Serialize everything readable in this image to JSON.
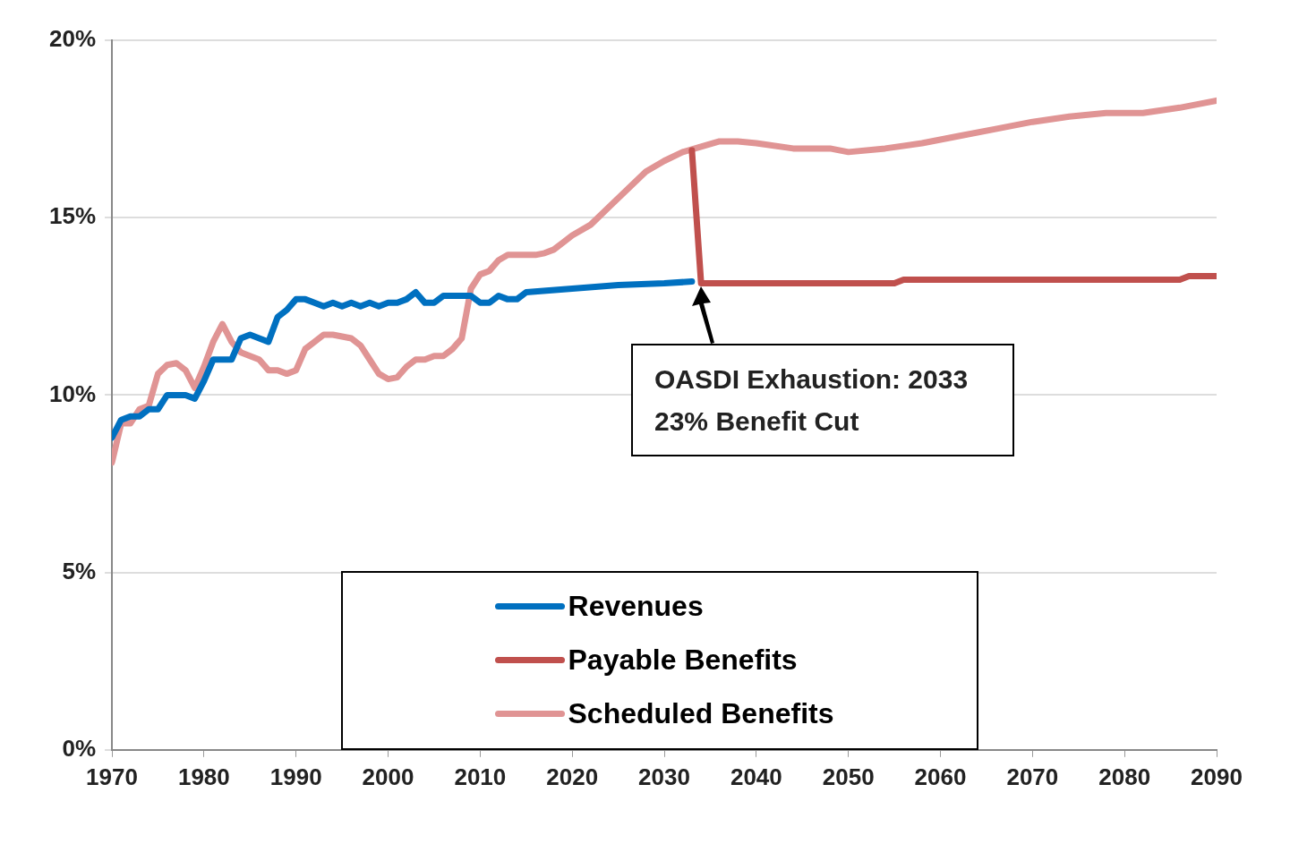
{
  "chart_data": {
    "type": "line",
    "xlim": [
      1970,
      2090
    ],
    "xticks": [
      1970,
      1980,
      1990,
      2000,
      2010,
      2020,
      2030,
      2040,
      2050,
      2060,
      2070,
      2080,
      2090
    ],
    "ylim": [
      0,
      20
    ],
    "yticks": [
      {
        "value": 0,
        "label": "0%"
      },
      {
        "value": 5,
        "label": "5%"
      },
      {
        "value": 10,
        "label": "10%"
      },
      {
        "value": 15,
        "label": "15%"
      },
      {
        "value": 20,
        "label": "20%"
      }
    ],
    "grid": "y",
    "legend": "bottom",
    "marker": "none",
    "line_style": "solid",
    "annotations": [
      "OASDI Exhaustion: 2033\n23% Benefit Cut"
    ],
    "series": [
      {
        "name": "Revenues",
        "color": "#0070c0",
        "x": [
          1970,
          1971,
          1972,
          1973,
          1974,
          1975,
          1976,
          1977,
          1978,
          1979,
          1980,
          1981,
          1982,
          1983,
          1984,
          1985,
          1986,
          1987,
          1988,
          1989,
          1990,
          1991,
          1992,
          1993,
          1994,
          1995,
          1996,
          1997,
          1998,
          1999,
          2000,
          2001,
          2002,
          2003,
          2004,
          2005,
          2006,
          2007,
          2008,
          2009,
          2010,
          2011,
          2012,
          2013,
          2014,
          2015,
          2020,
          2025,
          2030,
          2033
        ],
        "values": [
          8.8,
          9.3,
          9.4,
          9.4,
          9.6,
          9.6,
          10.0,
          10.0,
          10.0,
          9.9,
          10.4,
          11.0,
          11.0,
          11.0,
          11.6,
          11.7,
          11.6,
          11.5,
          12.2,
          12.4,
          12.7,
          12.7,
          12.6,
          12.5,
          12.6,
          12.5,
          12.6,
          12.5,
          12.6,
          12.5,
          12.6,
          12.6,
          12.7,
          12.9,
          12.6,
          12.6,
          12.8,
          12.8,
          12.8,
          12.8,
          12.6,
          12.6,
          12.8,
          12.7,
          12.7,
          12.9,
          13.0,
          13.1,
          13.15,
          13.2
        ]
      },
      {
        "name": "Payable Benefits",
        "color": "#c0504d",
        "x": [
          2033,
          2034,
          2055,
          2056,
          2086,
          2087,
          2090
        ],
        "values": [
          16.9,
          13.15,
          13.15,
          13.25,
          13.25,
          13.35,
          13.35
        ]
      },
      {
        "name": "Scheduled Benefits",
        "color": "#e09494",
        "x": [
          1970,
          1971,
          1972,
          1973,
          1974,
          1975,
          1976,
          1977,
          1978,
          1979,
          1980,
          1981,
          1982,
          1983,
          1984,
          1985,
          1986,
          1987,
          1988,
          1989,
          1990,
          1991,
          1992,
          1993,
          1994,
          1995,
          1996,
          1997,
          1998,
          1999,
          2000,
          2001,
          2002,
          2003,
          2004,
          2005,
          2006,
          2007,
          2008,
          2009,
          2010,
          2011,
          2012,
          2013,
          2014,
          2015,
          2016,
          2017,
          2018,
          2019,
          2020,
          2022,
          2024,
          2026,
          2028,
          2030,
          2032,
          2034,
          2036,
          2038,
          2040,
          2044,
          2048,
          2050,
          2054,
          2058,
          2062,
          2066,
          2070,
          2074,
          2078,
          2082,
          2086,
          2090
        ],
        "values": [
          8.1,
          9.2,
          9.2,
          9.6,
          9.7,
          10.6,
          10.85,
          10.9,
          10.7,
          10.2,
          10.8,
          11.5,
          12.0,
          11.5,
          11.2,
          11.1,
          11.0,
          10.7,
          10.7,
          10.6,
          10.7,
          11.3,
          11.5,
          11.7,
          11.7,
          11.65,
          11.6,
          11.4,
          11.0,
          10.6,
          10.45,
          10.5,
          10.8,
          11.0,
          11.0,
          11.1,
          11.1,
          11.3,
          11.6,
          13.0,
          13.4,
          13.5,
          13.8,
          13.95,
          13.95,
          13.95,
          13.95,
          14.0,
          14.1,
          14.3,
          14.5,
          14.8,
          15.3,
          15.8,
          16.3,
          16.6,
          16.85,
          17.0,
          17.15,
          17.15,
          17.1,
          16.95,
          16.95,
          16.85,
          16.95,
          17.1,
          17.3,
          17.5,
          17.7,
          17.85,
          17.95,
          17.95,
          18.1,
          18.3
        ]
      }
    ]
  }
}
